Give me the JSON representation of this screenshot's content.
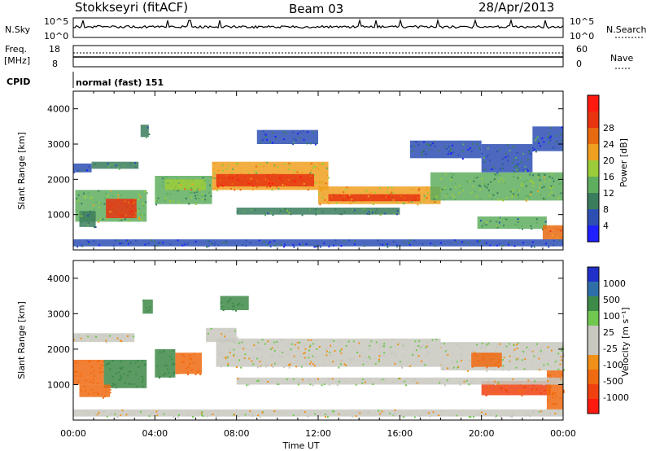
{
  "header": {
    "station": "Stokkseyri (fitACF)",
    "beam": "Beam 03",
    "date": "28/Apr/2013"
  },
  "status_panel": {
    "nsky_label": "N.Sky",
    "nsky_top": "10^5",
    "nsky_bottom": "10^0",
    "nsearch_label": "N.Search",
    "nsearch_top": "10^5",
    "nsearch_bottom": "10^0",
    "freq_label": "Freq.",
    "freq_unit": "[MHz]",
    "freq_top": "18",
    "freq_bottom": "8",
    "nave_label": "Nave",
    "nave_top": "60",
    "nave_bottom": "0",
    "cpid_label": "CPID",
    "cpid_value": "normal (fast) 151"
  },
  "colors": {
    "power_scale": [
      "#1f1fff",
      "#2d4fb4",
      "#3a7d5d",
      "#5fae5f",
      "#9ccc3a",
      "#f0a020",
      "#e86a10",
      "#e83410",
      "#ff1a10"
    ],
    "velocity_scale": [
      "#2030c8",
      "#2e6fa8",
      "#3e8a48",
      "#70c850",
      "#c8c8c0",
      "#c8c8c0",
      "#f09018",
      "#f06a10",
      "#f04010",
      "#ff1a10"
    ]
  },
  "chart_data": [
    {
      "type": "heatmap",
      "name": "power",
      "ylabel": "Slant Range [km]",
      "colorbar_label": "Power [dB]",
      "colorbar_ticks": [
        "4",
        "8",
        "12",
        "16",
        "20",
        "24",
        "28"
      ],
      "ylim": [
        0,
        4500
      ],
      "yticks": [
        "1000",
        "2000",
        "3000",
        "4000"
      ],
      "xlim": [
        0,
        24
      ],
      "regions": [
        {
          "t0": 0.0,
          "t1": 0.9,
          "r0": 2200,
          "r1": 2450,
          "value": 6
        },
        {
          "t0": 0.9,
          "t1": 3.2,
          "r0": 2300,
          "r1": 2500,
          "value": 8
        },
        {
          "t0": 0.1,
          "t1": 3.6,
          "r0": 800,
          "r1": 1700,
          "value": 14
        },
        {
          "t0": 1.6,
          "t1": 3.1,
          "r0": 900,
          "r1": 1450,
          "value": 26
        },
        {
          "t0": 0.3,
          "t1": 1.1,
          "r0": 650,
          "r1": 1100,
          "value": 10
        },
        {
          "t0": 3.3,
          "t1": 3.7,
          "r0": 3200,
          "r1": 3550,
          "value": 8
        },
        {
          "t0": 4.0,
          "t1": 6.8,
          "r0": 1300,
          "r1": 2100,
          "value": 12
        },
        {
          "t0": 4.5,
          "t1": 6.5,
          "r0": 1700,
          "r1": 2000,
          "value": 17
        },
        {
          "t0": 6.8,
          "t1": 12.5,
          "r0": 1700,
          "r1": 2500,
          "value": 18
        },
        {
          "t0": 7.0,
          "t1": 11.8,
          "r0": 1800,
          "r1": 2150,
          "value": 26
        },
        {
          "t0": 12.0,
          "t1": 18.0,
          "r0": 1300,
          "r1": 1800,
          "value": 18
        },
        {
          "t0": 12.5,
          "t1": 17.0,
          "r0": 1380,
          "r1": 1580,
          "value": 25
        },
        {
          "t0": 8.0,
          "t1": 16.0,
          "r0": 1000,
          "r1": 1200,
          "value": 10
        },
        {
          "t0": 17.5,
          "t1": 24.0,
          "r0": 1400,
          "r1": 2200,
          "value": 13
        },
        {
          "t0": 9.0,
          "t1": 12.0,
          "r0": 3000,
          "r1": 3400,
          "value": 6
        },
        {
          "t0": 16.5,
          "t1": 20.0,
          "r0": 2600,
          "r1": 3100,
          "value": 6
        },
        {
          "t0": 20.0,
          "t1": 22.5,
          "r0": 2200,
          "r1": 3000,
          "value": 7
        },
        {
          "t0": 22.5,
          "t1": 24.0,
          "r0": 2800,
          "r1": 3500,
          "value": 7
        },
        {
          "t0": 19.8,
          "t1": 23.2,
          "r0": 600,
          "r1": 950,
          "value": 11
        },
        {
          "t0": 23.0,
          "t1": 24.0,
          "r0": 300,
          "r1": 700,
          "value": 22
        },
        {
          "t0": 0.0,
          "t1": 24.0,
          "r0": 100,
          "r1": 300,
          "value": 5
        }
      ]
    },
    {
      "type": "heatmap",
      "name": "velocity",
      "ylabel": "Slant Range [km]",
      "colorbar_label": "Velocity [m s⁻¹]",
      "colorbar_ticks": [
        "-1000",
        "-500",
        "-100",
        "-25",
        "25",
        "100",
        "500",
        "1000"
      ],
      "ylim": [
        0,
        4500
      ],
      "yticks": [
        "1000",
        "2000",
        "3000",
        "4000"
      ],
      "xlim": [
        0,
        24
      ],
      "xticks": [
        "00:00",
        "04:00",
        "08:00",
        "12:00",
        "16:00",
        "20:00",
        "00:00"
      ],
      "xlabel": "Time UT",
      "regions": [
        {
          "t0": 0.0,
          "t1": 3.0,
          "r0": 2200,
          "r1": 2450,
          "value": 0
        },
        {
          "t0": 0.0,
          "t1": 1.5,
          "r0": 1000,
          "r1": 1700,
          "value": -400
        },
        {
          "t0": 1.5,
          "t1": 3.6,
          "r0": 900,
          "r1": 1700,
          "value": 300
        },
        {
          "t0": 0.3,
          "t1": 1.8,
          "r0": 650,
          "r1": 1000,
          "value": -300
        },
        {
          "t0": 4.0,
          "t1": 5.0,
          "r0": 1200,
          "r1": 2000,
          "value": 200
        },
        {
          "t0": 5.0,
          "t1": 6.3,
          "r0": 1300,
          "r1": 1900,
          "value": -200
        },
        {
          "t0": 6.5,
          "t1": 8.0,
          "r0": 2200,
          "r1": 2600,
          "value": 0
        },
        {
          "t0": 7.0,
          "t1": 18.0,
          "r0": 1500,
          "r1": 2300,
          "value": 0
        },
        {
          "t0": 18.0,
          "t1": 24.0,
          "r0": 1400,
          "r1": 2200,
          "value": 0
        },
        {
          "t0": 19.5,
          "t1": 21.0,
          "r0": 1500,
          "r1": 1900,
          "value": -200
        },
        {
          "t0": 20.0,
          "t1": 23.4,
          "r0": 700,
          "r1": 1100,
          "value": -500
        },
        {
          "t0": 23.2,
          "t1": 24.0,
          "r0": 300,
          "r1": 1400,
          "value": -400
        },
        {
          "t0": 3.4,
          "t1": 3.9,
          "r0": 3000,
          "r1": 3400,
          "value": 150
        },
        {
          "t0": 7.2,
          "t1": 8.6,
          "r0": 3100,
          "r1": 3500,
          "value": 300
        },
        {
          "t0": 8.0,
          "t1": 24.0,
          "r0": 1000,
          "r1": 1200,
          "value": 0
        },
        {
          "t0": 0.0,
          "t1": 24.0,
          "r0": 100,
          "r1": 300,
          "value": 0
        }
      ]
    }
  ]
}
